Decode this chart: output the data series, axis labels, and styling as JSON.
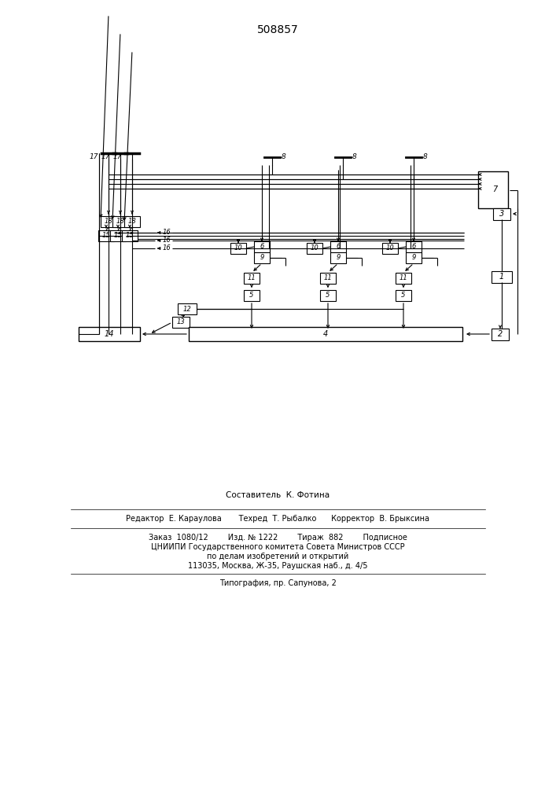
{
  "title": "508857",
  "bg_color": "#ffffff",
  "line_color": "#000000",
  "box_color": "#ffffff",
  "text_color": "#000000",
  "footer_lines": [
    "Составитель  К. Фотина",
    "Редактор  Е. Караулова       Техред  Т. Рыбалко      Корректор  В. Брыксина",
    "Заказ  1080/12        Изд. № 1222        Тираж  882        Подписное",
    "ЦНИИПИ Государственного комитета Совета Министров СССР",
    "по делам изобретений и открытий",
    "113035, Москва, Ж-35, Раушская наб., д. 4/5",
    "Типография, пр. Сапунова, 2"
  ]
}
